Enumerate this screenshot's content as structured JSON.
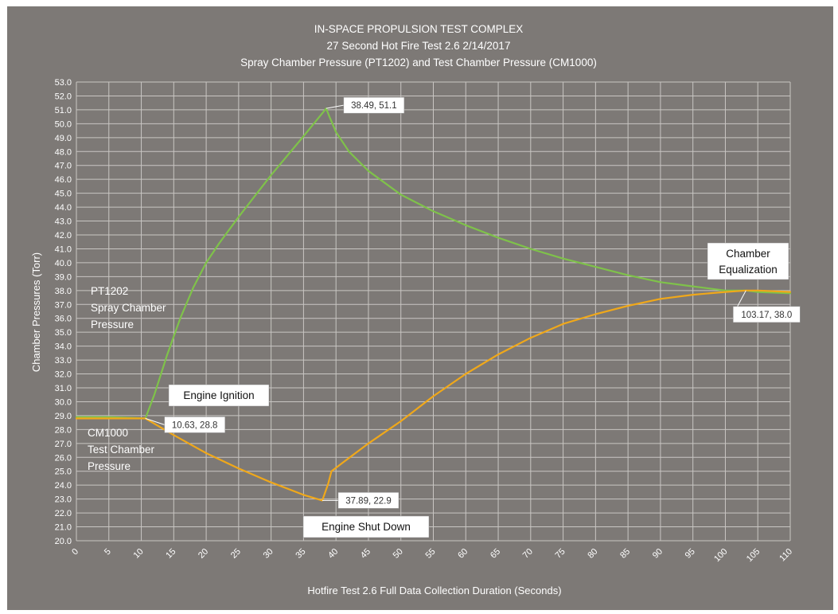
{
  "chart_data": {
    "type": "line",
    "title_lines": [
      "IN-SPACE PROPULSION TEST COMPLEX",
      "27  Second Hot Fire Test 2.6 2/14/2017",
      "Spray Chamber Pressure (PT1202) and Test Chamber Pressure (CM1000)"
    ],
    "xlabel": "Hotfire Test 2.6 Full Data Collection Duration (Seconds)",
    "ylabel": "Chamber Pressures (Torr)",
    "xlim": [
      0,
      110
    ],
    "ylim": [
      20,
      53
    ],
    "x_ticks": [
      "0",
      "5",
      "10",
      "15",
      "20",
      "25",
      "30",
      "35",
      "40",
      "45",
      "50",
      "55",
      "60",
      "65",
      "70",
      "75",
      "80",
      "85",
      "90",
      "95",
      "100",
      "105",
      "110"
    ],
    "y_ticks": [
      "20.0",
      "21.0",
      "22.0",
      "23.0",
      "24.0",
      "25.0",
      "26.0",
      "27.0",
      "28.0",
      "29.0",
      "30.0",
      "31.0",
      "32.0",
      "33.0",
      "34.0",
      "35.0",
      "36.0",
      "37.0",
      "38.0",
      "39.0",
      "40.0",
      "41.0",
      "42.0",
      "43.0",
      "44.0",
      "45.0",
      "46.0",
      "47.0",
      "48.0",
      "49.0",
      "50.0",
      "51.0",
      "52.0",
      "53.0"
    ],
    "grid": true,
    "colors": {
      "background": "#7d7976",
      "grid": "#c9c6c3",
      "PT1202": "#7fc24a",
      "CM1000": "#f0a81a"
    },
    "series": [
      {
        "name": "PT1202",
        "x": [
          0,
          5,
          10.63,
          12,
          14,
          16,
          18,
          20,
          22,
          25,
          30,
          35,
          38.49,
          39,
          40,
          42,
          45,
          50,
          55,
          60,
          65,
          70,
          75,
          80,
          85,
          90,
          95,
          100,
          103.17,
          105,
          110
        ],
        "y": [
          28.9,
          28.9,
          28.8,
          30.5,
          33.4,
          36.0,
          38.2,
          40.0,
          41.4,
          43.3,
          46.3,
          49.1,
          51.1,
          50.5,
          49.4,
          48.0,
          46.6,
          44.9,
          43.7,
          42.7,
          41.8,
          41.0,
          40.3,
          39.7,
          39.1,
          38.6,
          38.3,
          38.0,
          38.0,
          37.9,
          37.8
        ]
      },
      {
        "name": "CM1000",
        "x": [
          0,
          5,
          10.63,
          15,
          20,
          25,
          30,
          35,
          37.89,
          38.8,
          39.3,
          41,
          45,
          50,
          55,
          60,
          65,
          70,
          75,
          80,
          85,
          90,
          95,
          100,
          103.17,
          105,
          110
        ],
        "y": [
          28.8,
          28.8,
          28.8,
          27.6,
          26.3,
          25.2,
          24.2,
          23.3,
          22.9,
          24.1,
          25.0,
          25.6,
          27.0,
          28.6,
          30.4,
          32.0,
          33.4,
          34.6,
          35.6,
          36.3,
          36.9,
          37.4,
          37.7,
          37.9,
          38.0,
          38.0,
          37.9
        ]
      }
    ],
    "callouts": [
      {
        "text": "38.49, 51.1",
        "x": 38.49,
        "y": 51.1
      },
      {
        "text": "10.63, 28.8",
        "x": 10.63,
        "y": 28.8
      },
      {
        "text": "37.89, 22.9",
        "x": 37.89,
        "y": 22.9
      },
      {
        "text": "103.17, 38.0",
        "x": 103.17,
        "y": 38.0
      }
    ],
    "annotations": {
      "pt1202_label": [
        "PT1202",
        "Spray Chamber",
        "Pressure"
      ],
      "cm1000_label": [
        "CM1000",
        "Test Chamber",
        "Pressure"
      ],
      "engine_ignition": "Engine Ignition",
      "engine_shutdown": "Engine  Shut Down",
      "chamber_equalization": [
        "Chamber",
        "Equalization"
      ]
    }
  }
}
